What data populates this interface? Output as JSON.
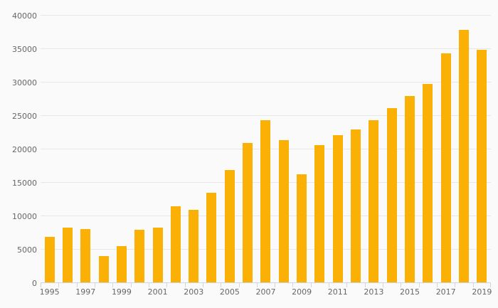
{
  "chart_data": {
    "type": "bar",
    "title": "",
    "xlabel": "",
    "ylabel": "",
    "categories": [
      1995,
      1996,
      1997,
      1998,
      1999,
      2000,
      2001,
      2002,
      2003,
      2004,
      2005,
      2006,
      2007,
      2008,
      2009,
      2010,
      2011,
      2012,
      2013,
      2014,
      2015,
      2016,
      2017,
      2018,
      2019
    ],
    "values": [
      6900,
      8300,
      8100,
      4000,
      5500,
      8000,
      8300,
      11500,
      11000,
      13500,
      16900,
      21000,
      24400,
      21400,
      16300,
      20600,
      22100,
      23000,
      24400,
      26200,
      28000,
      29800,
      34400,
      37900,
      34900
    ],
    "ylim": [
      0,
      40000
    ],
    "ytick_step": 5000,
    "ytick_labels": [
      "0",
      "5000",
      "10000",
      "15000",
      "20000",
      "25000",
      "30000",
      "35000",
      "40000"
    ],
    "xtick_labels": [
      "1995",
      "1997",
      "1999",
      "2001",
      "2003",
      "2005",
      "2007",
      "2009",
      "2011",
      "2013",
      "2015",
      "2017",
      "2019"
    ],
    "grid": true,
    "legend": false,
    "colors": {
      "bar": "#FAB005",
      "grid": "#e7e7e7",
      "axis_line": "#ccd6eb",
      "tick": "#ccd6eb",
      "label_text": "#666666",
      "background": "#fafafa"
    }
  }
}
